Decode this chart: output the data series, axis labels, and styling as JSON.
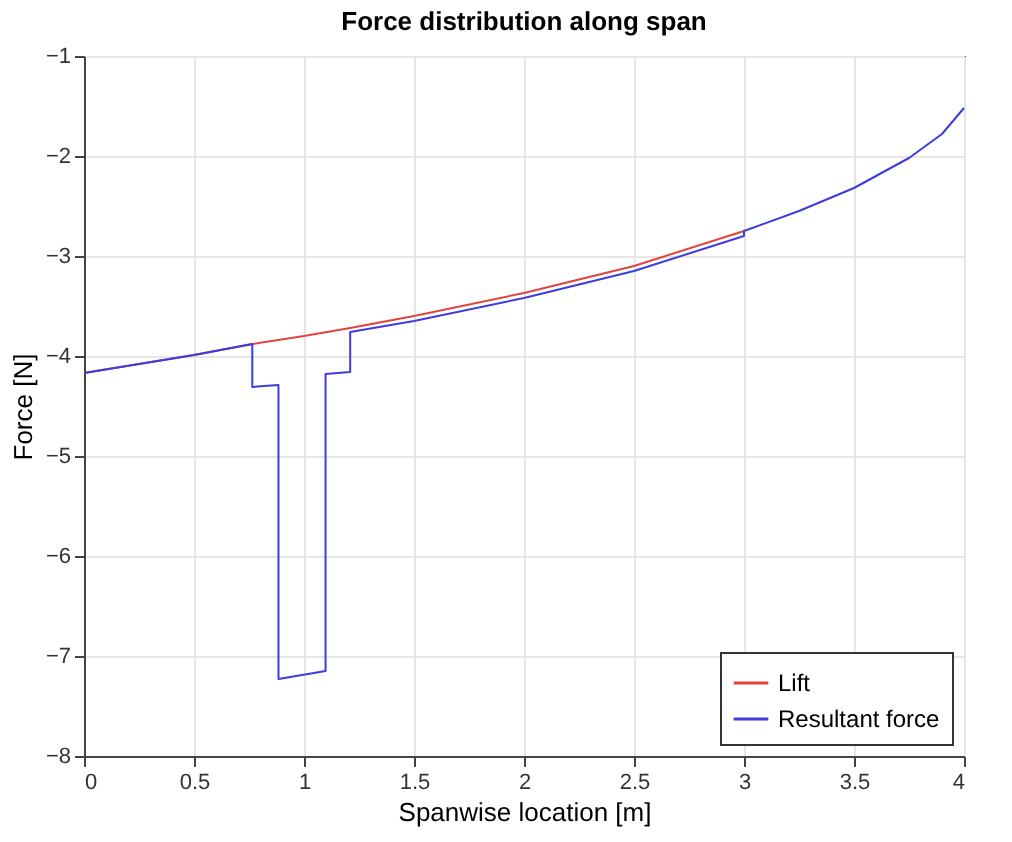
{
  "chart_data": {
    "type": "line",
    "title": "Force distribution along span",
    "xlabel": "Spanwise location [m]",
    "ylabel": "Force [N]",
    "xlim": [
      0,
      4
    ],
    "ylim": [
      -8,
      -1
    ],
    "xticks": [
      0,
      0.5,
      1,
      1.5,
      2,
      2.5,
      3,
      3.5,
      4
    ],
    "yticks": [
      -8,
      -7,
      -6,
      -5,
      -4,
      -3,
      -2,
      -1
    ],
    "grid": true,
    "legend": "bottom right",
    "line_style": "solid",
    "marker": "none",
    "series": [
      {
        "name": "Lift",
        "color": "#e0443c",
        "x": [
          0,
          0.5,
          0.765,
          1,
          1.21,
          1.5,
          2,
          2.5,
          3
        ],
        "values": [
          -4.17,
          -3.99,
          -3.88,
          -3.8,
          -3.72,
          -3.6,
          -3.37,
          -3.1,
          -2.75
        ]
      },
      {
        "name": "Resultant force",
        "color": "#3c3ce0",
        "x": [
          0,
          0.5,
          0.765,
          0.765,
          0.884,
          0.884,
          1.098,
          1.098,
          1.21,
          1.21,
          1.5,
          2,
          2.5,
          3,
          3,
          3.25,
          3.5,
          3.75,
          3.9,
          4
        ],
        "values": [
          -4.17,
          -3.99,
          -3.88,
          -4.31,
          -4.29,
          -7.23,
          -7.15,
          -4.18,
          -4.16,
          -3.76,
          -3.65,
          -3.42,
          -3.15,
          -2.8,
          -2.75,
          -2.55,
          -2.32,
          -2.02,
          -1.78,
          -1.52
        ]
      }
    ]
  }
}
